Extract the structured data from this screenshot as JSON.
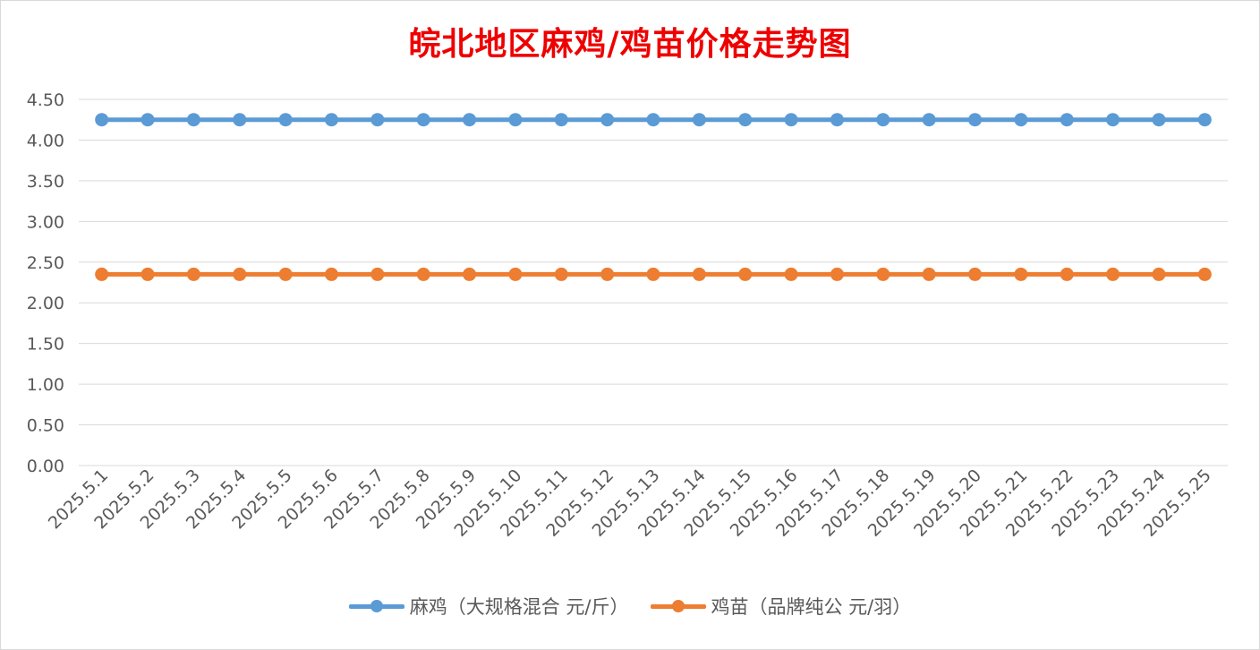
{
  "chart_data": {
    "type": "line",
    "title": "皖北地区麻鸡/鸡苗价格走势图",
    "xlabel": "",
    "ylabel": "",
    "ylim": [
      0,
      4.5
    ],
    "yticks": [
      "0.00",
      "0.50",
      "1.00",
      "1.50",
      "2.00",
      "2.50",
      "3.00",
      "3.50",
      "4.00",
      "4.50"
    ],
    "grid": true,
    "legend_position": "bottom",
    "categories": [
      "2025.5.1",
      "2025.5.2",
      "2025.5.3",
      "2025.5.4",
      "2025.5.5",
      "2025.5.6",
      "2025.5.7",
      "2025.5.8",
      "2025.5.9",
      "2025.5.10",
      "2025.5.11",
      "2025.5.12",
      "2025.5.13",
      "2025.5.14",
      "2025.5.15",
      "2025.5.16",
      "2025.5.17",
      "2025.5.18",
      "2025.5.19",
      "2025.5.20",
      "2025.5.21",
      "2025.5.22",
      "2025.5.23",
      "2025.5.24",
      "2025.5.25"
    ],
    "series": [
      {
        "name": "麻鸡（大规格混合 元/斤）",
        "color": "#5b9bd5",
        "values": [
          4.25,
          4.25,
          4.25,
          4.25,
          4.25,
          4.25,
          4.25,
          4.25,
          4.25,
          4.25,
          4.25,
          4.25,
          4.25,
          4.25,
          4.25,
          4.25,
          4.25,
          4.25,
          4.25,
          4.25,
          4.25,
          4.25,
          4.25,
          4.25,
          4.25
        ]
      },
      {
        "name": "鸡苗（品牌纯公 元/羽）",
        "color": "#ed7d31",
        "values": [
          2.35,
          2.35,
          2.35,
          2.35,
          2.35,
          2.35,
          2.35,
          2.35,
          2.35,
          2.35,
          2.35,
          2.35,
          2.35,
          2.35,
          2.35,
          2.35,
          2.35,
          2.35,
          2.35,
          2.35,
          2.35,
          2.35,
          2.35,
          2.35,
          2.35
        ]
      }
    ]
  }
}
